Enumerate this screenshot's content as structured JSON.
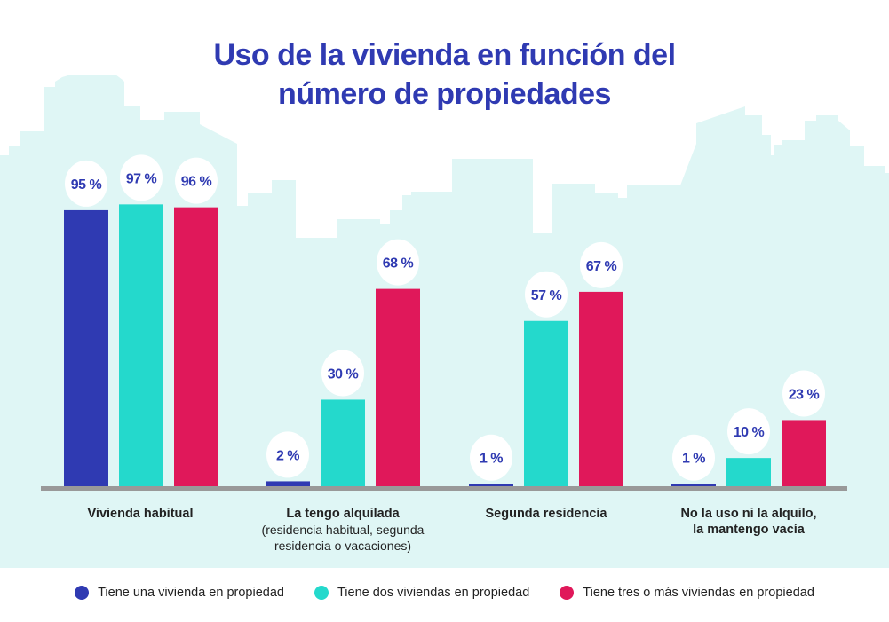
{
  "chart_data": {
    "type": "bar",
    "title": "Uso de la vivienda en función del número de propiedades",
    "title_lines": [
      "Uso de la vivienda en función del",
      "número de propiedades"
    ],
    "categories": [
      {
        "main": "Vivienda habitual",
        "sub": []
      },
      {
        "main": "La tengo alquilada",
        "sub": [
          "(residencia habitual, segunda",
          "residencia o vacaciones)"
        ]
      },
      {
        "main": "Segunda residencia",
        "sub": []
      },
      {
        "main": "No la uso ni la alquilo,",
        "sub": [],
        "main2": "la mantengo vacía"
      }
    ],
    "series": [
      {
        "name": "Tiene una vivienda en propiedad",
        "color": "#2f3ab2",
        "values": [
          95,
          2,
          1,
          1
        ],
        "labels": [
          "95 %",
          "2 %",
          "1 %",
          "1 %"
        ]
      },
      {
        "name": "Tiene dos viviendas en propiedad",
        "color": "#24d9cc",
        "values": [
          97,
          30,
          57,
          10
        ],
        "labels": [
          "97 %",
          "30 %",
          "57 %",
          "10 %"
        ]
      },
      {
        "name": "Tiene tres o más viviendas en propiedad",
        "color": "#e0185a",
        "values": [
          96,
          68,
          67,
          23
        ],
        "labels": [
          "96 %",
          "68 %",
          "67 %",
          "23 %"
        ]
      }
    ],
    "ylim": [
      0,
      100
    ],
    "grid": false,
    "legend": "bottom",
    "axis_color": "#999999",
    "background_color": "#dff6f5"
  }
}
